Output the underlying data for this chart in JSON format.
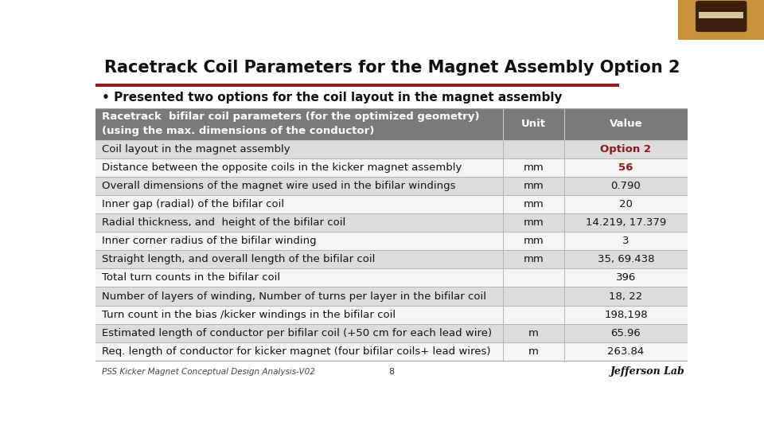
{
  "title": "Racetrack Coil Parameters for the Magnet Assembly Option 2",
  "subtitle": "• Presented two options for the coil layout in the magnet assembly",
  "title_bar_color": "#9b1b1b",
  "header_bg": "#7a7a7a",
  "header_text_color": "#ffffff",
  "header_col1": "Racetrack  bifilar coil parameters (for the optimized geometry)\n(using the max. dimensions of the conductor)",
  "header_col2": "Unit",
  "header_col3": "Value",
  "rows": [
    {
      "param": "Coil layout in the magnet assembly",
      "unit": "",
      "value": "Option 2",
      "value_color": "#8b1a1a",
      "value_bold": true,
      "bg": "#dcdcdc"
    },
    {
      "param": "Distance between the opposite coils in the kicker magnet assembly",
      "unit": "mm",
      "value": "56",
      "value_color": "#8b1a1a",
      "value_bold": true,
      "bg": "#f5f5f5"
    },
    {
      "param": "Overall dimensions of the magnet wire used in the bifilar windings",
      "unit": "mm",
      "value": "0.790",
      "value_color": "#111111",
      "value_bold": false,
      "bg": "#dcdcdc"
    },
    {
      "param": "Inner gap (radial) of the bifilar coil",
      "unit": "mm",
      "value": "20",
      "value_color": "#111111",
      "value_bold": false,
      "bg": "#f5f5f5"
    },
    {
      "param": "Radial thickness, and  height of the bifilar coil",
      "unit": "mm",
      "value": "14.219, 17.379",
      "value_color": "#111111",
      "value_bold": false,
      "bg": "#dcdcdc"
    },
    {
      "param": "Inner corner radius of the bifilar winding",
      "unit": "mm",
      "value": "3",
      "value_color": "#111111",
      "value_bold": false,
      "bg": "#f5f5f5"
    },
    {
      "param": "Straight length, and overall length of the bifilar coil",
      "unit": "mm",
      "value": "35, 69.438",
      "value_color": "#111111",
      "value_bold": false,
      "bg": "#dcdcdc"
    },
    {
      "param": "Total turn counts in the bifilar coil",
      "unit": "",
      "value": "396",
      "value_color": "#111111",
      "value_bold": false,
      "bg": "#f5f5f5"
    },
    {
      "param": "Number of layers of winding, Number of turns per layer in the bifilar coil",
      "unit": "",
      "value": "18, 22",
      "value_color": "#111111",
      "value_bold": false,
      "bg": "#dcdcdc"
    },
    {
      "param": "Turn count in the bias /kicker windings in the bifilar coil",
      "unit": "",
      "value": "198,198",
      "value_color": "#111111",
      "value_bold": false,
      "bg": "#f5f5f5"
    },
    {
      "param": "Estimated length of conductor per bifilar coil (+50 cm for each lead wire)",
      "unit": "m",
      "value": "65.96",
      "value_color": "#111111",
      "value_bold": false,
      "bg": "#dcdcdc"
    },
    {
      "param": "Req. length of conductor for kicker magnet (four bifilar coils+ lead wires)",
      "unit": "m",
      "value": "263.84",
      "value_color": "#111111",
      "value_bold": false,
      "bg": "#f5f5f5"
    }
  ],
  "footer_left": "PSS Kicker Magnet Conceptual Design Analysis-V02",
  "footer_center": "8",
  "background_color": "#ffffff",
  "grid_color": "#aaaaaa",
  "title_font_size": 15,
  "subtitle_font_size": 11,
  "table_font_size": 9.5
}
